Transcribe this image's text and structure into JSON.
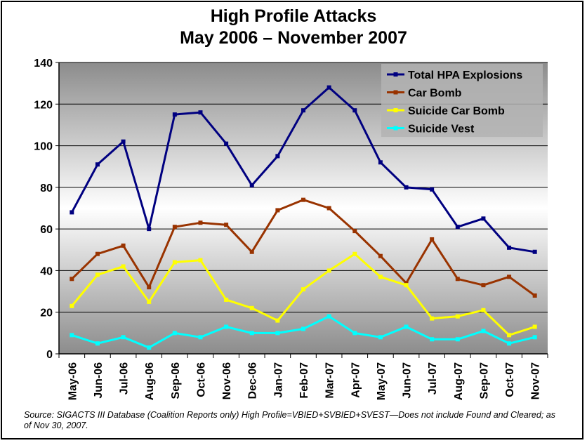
{
  "chart_data": {
    "type": "line",
    "title": "High Profile Attacks",
    "subtitle": "May 2006 – November 2007",
    "xlabel": "",
    "ylabel": "",
    "ylim": [
      0,
      140
    ],
    "yticks": [
      0,
      20,
      40,
      60,
      80,
      100,
      120,
      140
    ],
    "grid": true,
    "legend_position": "top-right",
    "categories": [
      "May-06",
      "Jun-06",
      "Jul-06",
      "Aug-06",
      "Sep-06",
      "Oct-06",
      "Nov-06",
      "Dec-06",
      "Jan-07",
      "Feb-07",
      "Mar-07",
      "Apr-07",
      "May-07",
      "Jun-07",
      "Jul-07",
      "Aug-07",
      "Sep-07",
      "Oct-07",
      "Nov-07"
    ],
    "series": [
      {
        "name": "Total HPA Explosions",
        "color": "#000080",
        "values": [
          68,
          91,
          102,
          60,
          115,
          116,
          101,
          81,
          95,
          117,
          128,
          117,
          92,
          80,
          79,
          61,
          65,
          51,
          49
        ]
      },
      {
        "name": "Car Bomb",
        "color": "#993300",
        "values": [
          36,
          48,
          52,
          32,
          61,
          63,
          62,
          49,
          69,
          74,
          70,
          59,
          47,
          34,
          55,
          36,
          33,
          37,
          28
        ]
      },
      {
        "name": "Suicide Car Bomb",
        "color": "#FFFF00",
        "values": [
          23,
          38,
          42,
          25,
          44,
          45,
          26,
          22,
          16,
          31,
          40,
          48,
          37,
          33,
          17,
          18,
          21,
          9,
          13
        ]
      },
      {
        "name": "Suicide Vest",
        "color": "#00FFFF",
        "values": [
          9,
          5,
          8,
          3,
          10,
          8,
          13,
          10,
          10,
          12,
          18,
          10,
          8,
          13,
          7,
          7,
          11,
          5,
          8
        ]
      }
    ]
  },
  "source_note": "Source:  SIGACTS III Database (Coalition Reports only) High Profile=VBIED+SVBIED+SVEST—Does not include Found and Cleared; as of Nov 30, 2007."
}
